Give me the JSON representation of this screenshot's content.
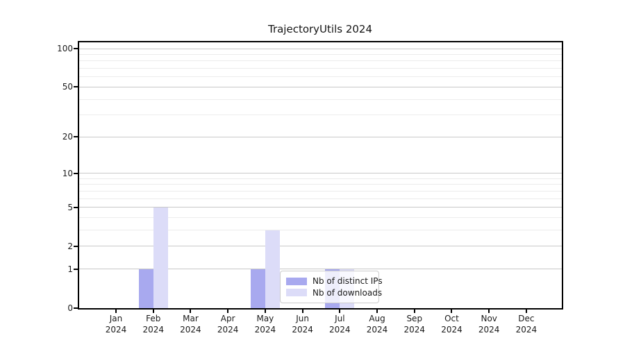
{
  "chart_data": {
    "type": "bar",
    "title": "TrajectoryUtils 2024",
    "categories": [
      "Jan 2024",
      "Feb 2024",
      "Mar 2024",
      "Apr 2024",
      "May 2024",
      "Jun 2024",
      "Jul 2024",
      "Aug 2024",
      "Sep 2024",
      "Oct 2024",
      "Nov 2024",
      "Dec 2024"
    ],
    "series": [
      {
        "name": "Nb of distinct IPs",
        "color": "#a8a9ef",
        "values": [
          0,
          1,
          0,
          0,
          1,
          0,
          1,
          0,
          0,
          0,
          0,
          0
        ]
      },
      {
        "name": "Nb of downloads",
        "color": "#dcdcf8",
        "values": [
          0,
          5,
          0,
          0,
          3,
          0,
          1,
          0,
          0,
          0,
          0,
          0
        ]
      }
    ],
    "yaxis": {
      "scale": "log1p",
      "tick_values": [
        0,
        1,
        2,
        5,
        10,
        20,
        50,
        100
      ],
      "tick_labels": [
        "0",
        "1",
        "2",
        "5",
        "10",
        "20",
        "50",
        "100"
      ],
      "minor_gridline_values": [
        3,
        4,
        6,
        7,
        8,
        9,
        30,
        40,
        60,
        70,
        80,
        90
      ],
      "range_max_value": 100
    },
    "xlabel": "",
    "ylabel": "",
    "legend": {
      "location": "lower center",
      "entries": [
        "Nb of distinct IPs",
        "Nb of downloads"
      ]
    },
    "grid": {
      "major_on": true,
      "minor_on": true
    },
    "colors": {
      "major_grid": "#c8c8c8",
      "minor_grid": "#ececec",
      "axis": "#000000",
      "text": "#1a1a1a",
      "background": "#ffffff"
    }
  }
}
